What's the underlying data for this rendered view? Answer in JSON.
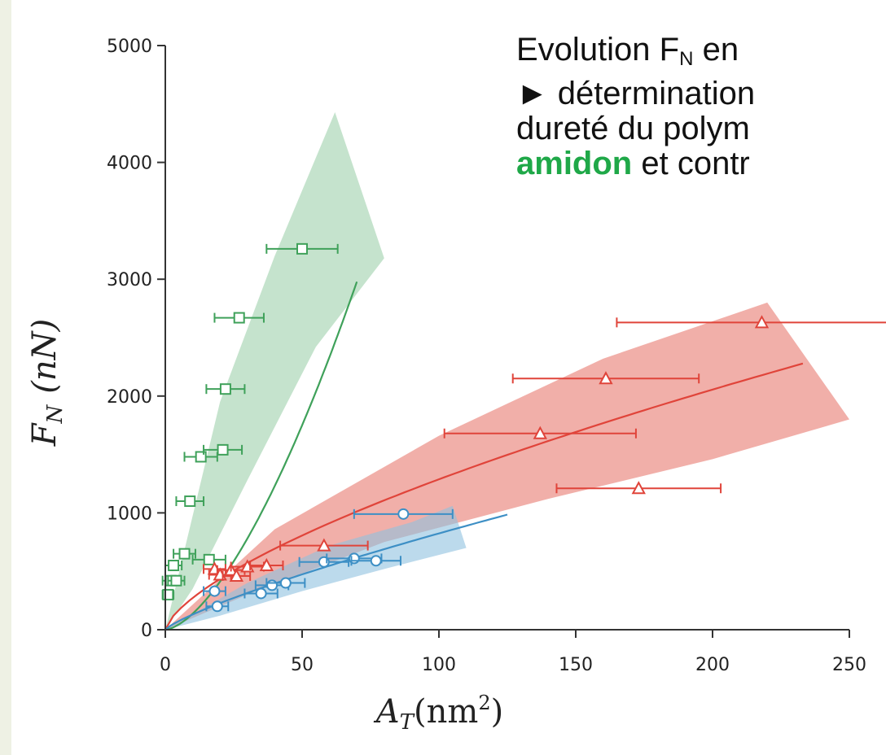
{
  "caption": {
    "line1_prefix": "Evolution F",
    "line1_sub": "N",
    "line1_suffix": " en",
    "line2": "► détermination",
    "line3": "dureté du polym",
    "line4_green": "amidon",
    "line4_rest": " et contr"
  },
  "chart_data": {
    "type": "scatter",
    "xlabel_main": "A",
    "xlabel_sub": "T",
    "xlabel_unit": "(nm",
    "xlabel_exp": "2",
    "xlabel_close": ")",
    "ylabel_main": "F",
    "ylabel_sub": "N",
    "ylabel_unit": "(nN)",
    "xlim": [
      0,
      250
    ],
    "ylim": [
      0,
      5000
    ],
    "xticks": [
      0,
      50,
      100,
      150,
      200,
      250
    ],
    "yticks": [
      0,
      1000,
      2000,
      3000,
      4000,
      5000
    ],
    "series": [
      {
        "color": "#3fa15a",
        "band_color": "#9fd0ac",
        "marker": "square",
        "points": [
          {
            "x": 1,
            "y": 300,
            "xerr": 2
          },
          {
            "x": 2,
            "y": 420,
            "xerr": 3
          },
          {
            "x": 3,
            "y": 550,
            "xerr": 3
          },
          {
            "x": 4,
            "y": 420,
            "xerr": 3
          },
          {
            "x": 7,
            "y": 650,
            "xerr": 4
          },
          {
            "x": 9,
            "y": 1100,
            "xerr": 5
          },
          {
            "x": 13,
            "y": 1480,
            "xerr": 6
          },
          {
            "x": 16,
            "y": 600,
            "xerr": 6
          },
          {
            "x": 21,
            "y": 1540,
            "xerr": 7
          },
          {
            "x": 22,
            "y": 2060,
            "xerr": 7
          },
          {
            "x": 27,
            "y": 2670,
            "xerr": 9
          },
          {
            "x": 50,
            "y": 3260,
            "xerr": 13
          }
        ],
        "fit": {
          "coef": 3.62,
          "exp": 1.58,
          "xmax": 70
        },
        "band": {
          "upper": [
            [
              0,
              0
            ],
            [
              20,
              1950
            ],
            [
              40,
              3200
            ],
            [
              62,
              4430
            ],
            [
              80,
              3180
            ]
          ],
          "lower": [
            [
              80,
              3180
            ],
            [
              55,
              2420
            ],
            [
              30,
              1280
            ],
            [
              10,
              350
            ],
            [
              0,
              0
            ]
          ]
        }
      },
      {
        "color": "#e0443a",
        "band_color": "#e77a70",
        "marker": "triangle",
        "points": [
          {
            "x": 18,
            "y": 520,
            "xerr": 4
          },
          {
            "x": 20,
            "y": 470,
            "xerr": 4
          },
          {
            "x": 24,
            "y": 510,
            "xerr": 5
          },
          {
            "x": 26,
            "y": 460,
            "xerr": 5
          },
          {
            "x": 30,
            "y": 540,
            "xerr": 6
          },
          {
            "x": 37,
            "y": 550,
            "xerr": 6
          },
          {
            "x": 58,
            "y": 720,
            "xerr": 16
          },
          {
            "x": 137,
            "y": 1680,
            "xerr": 35
          },
          {
            "x": 161,
            "y": 2150,
            "xerr": 34
          },
          {
            "x": 173,
            "y": 1210,
            "xerr": 30
          },
          {
            "x": 218,
            "y": 2630,
            "xerr": 53
          }
        ],
        "fit": {
          "coef": 57.5,
          "exp": 0.675,
          "xmax": 233
        },
        "band": {
          "upper": [
            [
              0,
              0
            ],
            [
              40,
              860
            ],
            [
              100,
              1660
            ],
            [
              160,
              2320
            ],
            [
              220,
              2800
            ],
            [
              250,
              1800
            ]
          ],
          "lower": [
            [
              250,
              1800
            ],
            [
              200,
              1460
            ],
            [
              140,
              1120
            ],
            [
              80,
              750
            ],
            [
              30,
              300
            ],
            [
              0,
              0
            ]
          ]
        }
      },
      {
        "color": "#3d8fc5",
        "band_color": "#8fc2e0",
        "marker": "circle",
        "points": [
          {
            "x": 18,
            "y": 330,
            "xerr": 4
          },
          {
            "x": 19,
            "y": 200,
            "xerr": 4
          },
          {
            "x": 35,
            "y": 310,
            "xerr": 6
          },
          {
            "x": 39,
            "y": 380,
            "xerr": 6
          },
          {
            "x": 44,
            "y": 400,
            "xerr": 7
          },
          {
            "x": 58,
            "y": 580,
            "xerr": 9
          },
          {
            "x": 69,
            "y": 610,
            "xerr": 10
          },
          {
            "x": 77,
            "y": 590,
            "xerr": 9
          },
          {
            "x": 87,
            "y": 990,
            "xerr": 18
          }
        ],
        "fit": {
          "coef": 20.7,
          "exp": 0.8,
          "xmax": 125
        },
        "band": {
          "upper": [
            [
              0,
              0
            ],
            [
              30,
              400
            ],
            [
              60,
              720
            ],
            [
              90,
              920
            ],
            [
              105,
              1060
            ]
          ],
          "lower": [
            [
              110,
              700
            ],
            [
              80,
              520
            ],
            [
              50,
              330
            ],
            [
              20,
              120
            ],
            [
              0,
              0
            ]
          ]
        }
      }
    ]
  }
}
